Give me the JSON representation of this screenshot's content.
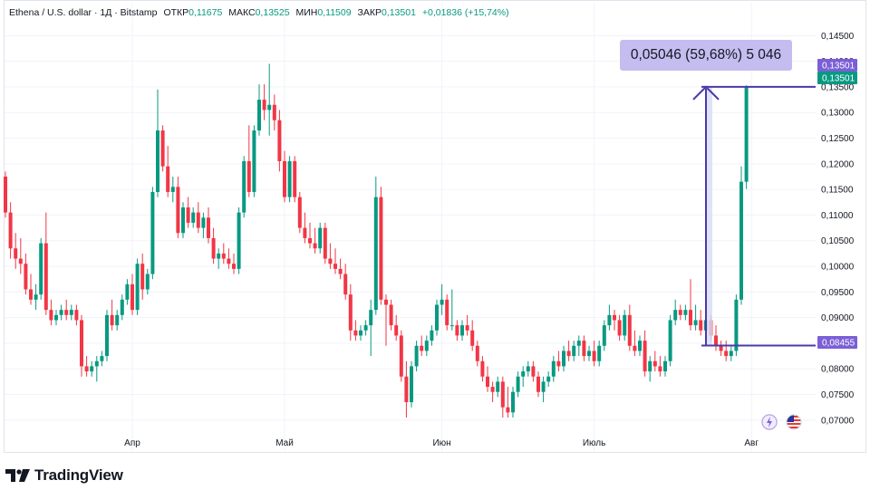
{
  "header": {
    "symbol": "Ethena / U.S. dollar · 1Д · Bitstamp",
    "open_label": "ОТКР",
    "open_value": "0,11675",
    "high_label": "МАКС",
    "high_value": "0,13525",
    "low_label": "МИН",
    "low_value": "0,11509",
    "close_label": "ЗАКР",
    "close_value": "0,13501",
    "change": "+0,01836 (+15,74%)"
  },
  "measure": {
    "label": "0,05046 (59,68%) 5 046",
    "from": 0.08455,
    "to": 0.13501
  },
  "price_tags": [
    {
      "text": "0,13501",
      "value": 0.13501,
      "color": "#7b5fd6"
    },
    {
      "text": "0,13501",
      "value": 0.13501,
      "color": "#089981"
    },
    {
      "text": "0,08455",
      "value": 0.08455,
      "color": "#7b5fd6"
    }
  ],
  "brand": {
    "name": "TradingView"
  },
  "icons": {
    "lightning": "lightning-icon",
    "flag": "us-flag-icon",
    "logo": "tradingview-logo-icon"
  },
  "colors": {
    "up": "#089981",
    "down": "#f23645",
    "measure": "#4a3aa8",
    "tag": "#7b5fd6"
  },
  "chart_data": {
    "type": "candlestick",
    "title": "Ethena / U.S. dollar · 1Д · Bitstamp",
    "xlabel": "",
    "ylabel": "",
    "ylim": [
      0.0675,
      0.147
    ],
    "y_ticks": [
      {
        "value": 0.07,
        "label": "0,07000"
      },
      {
        "value": 0.075,
        "label": "0,07500"
      },
      {
        "value": 0.08,
        "label": "0,08000"
      },
      {
        "value": 0.085,
        "label": "0,08500"
      },
      {
        "value": 0.09,
        "label": "0,09000"
      },
      {
        "value": 0.095,
        "label": "0,09500"
      },
      {
        "value": 0.1,
        "label": "0,10000"
      },
      {
        "value": 0.105,
        "label": "0,10500"
      },
      {
        "value": 0.11,
        "label": "0,11000"
      },
      {
        "value": 0.115,
        "label": "0,11500"
      },
      {
        "value": 0.12,
        "label": "0,12000"
      },
      {
        "value": 0.125,
        "label": "0,12500"
      },
      {
        "value": 0.13,
        "label": "0,13000"
      },
      {
        "value": 0.135,
        "label": "0,13500"
      },
      {
        "value": 0.14,
        "label": "0,14000"
      },
      {
        "value": 0.145,
        "label": "0,14500"
      }
    ],
    "x_ticks": [
      {
        "index": 25,
        "label": "Апр"
      },
      {
        "index": 55,
        "label": "Май"
      },
      {
        "index": 86,
        "label": "Июн"
      },
      {
        "index": 116,
        "label": "Июль"
      },
      {
        "index": 147,
        "label": "Авг"
      }
    ],
    "grid": true,
    "legend": "none",
    "candles": [
      {
        "o": 0.1175,
        "h": 0.1185,
        "l": 0.1095,
        "c": 0.1105
      },
      {
        "o": 0.1105,
        "h": 0.1125,
        "l": 0.1015,
        "c": 0.1035
      },
      {
        "o": 0.1035,
        "h": 0.1065,
        "l": 0.0995,
        "c": 0.1015
      },
      {
        "o": 0.1015,
        "h": 0.1055,
        "l": 0.0985,
        "c": 0.1005
      },
      {
        "o": 0.1005,
        "h": 0.1025,
        "l": 0.0945,
        "c": 0.0955
      },
      {
        "o": 0.0955,
        "h": 0.0985,
        "l": 0.0925,
        "c": 0.0935
      },
      {
        "o": 0.0935,
        "h": 0.0965,
        "l": 0.0915,
        "c": 0.0945
      },
      {
        "o": 0.0945,
        "h": 0.1055,
        "l": 0.0935,
        "c": 0.1045
      },
      {
        "o": 0.1045,
        "h": 0.1105,
        "l": 0.0905,
        "c": 0.0915
      },
      {
        "o": 0.0915,
        "h": 0.0935,
        "l": 0.0885,
        "c": 0.0895
      },
      {
        "o": 0.0895,
        "h": 0.0915,
        "l": 0.0885,
        "c": 0.0905
      },
      {
        "o": 0.0905,
        "h": 0.0925,
        "l": 0.0895,
        "c": 0.0915
      },
      {
        "o": 0.0915,
        "h": 0.0935,
        "l": 0.0895,
        "c": 0.0905
      },
      {
        "o": 0.0905,
        "h": 0.0925,
        "l": 0.0895,
        "c": 0.0915
      },
      {
        "o": 0.0915,
        "h": 0.0925,
        "l": 0.0885,
        "c": 0.0895
      },
      {
        "o": 0.0895,
        "h": 0.0905,
        "l": 0.0785,
        "c": 0.0805
      },
      {
        "o": 0.0805,
        "h": 0.0825,
        "l": 0.0785,
        "c": 0.0795
      },
      {
        "o": 0.0795,
        "h": 0.0815,
        "l": 0.0785,
        "c": 0.0805
      },
      {
        "o": 0.0805,
        "h": 0.0825,
        "l": 0.0775,
        "c": 0.0815
      },
      {
        "o": 0.0815,
        "h": 0.0835,
        "l": 0.0805,
        "c": 0.0825
      },
      {
        "o": 0.0825,
        "h": 0.0915,
        "l": 0.0815,
        "c": 0.0905
      },
      {
        "o": 0.0905,
        "h": 0.0935,
        "l": 0.0875,
        "c": 0.0885
      },
      {
        "o": 0.0885,
        "h": 0.0915,
        "l": 0.0875,
        "c": 0.0905
      },
      {
        "o": 0.0905,
        "h": 0.0945,
        "l": 0.0895,
        "c": 0.0935
      },
      {
        "o": 0.0935,
        "h": 0.0975,
        "l": 0.0925,
        "c": 0.0965
      },
      {
        "o": 0.0965,
        "h": 0.0985,
        "l": 0.0905,
        "c": 0.0915
      },
      {
        "o": 0.0915,
        "h": 0.1015,
        "l": 0.0905,
        "c": 0.1005
      },
      {
        "o": 0.1005,
        "h": 0.1025,
        "l": 0.0935,
        "c": 0.0955
      },
      {
        "o": 0.0955,
        "h": 0.0995,
        "l": 0.0945,
        "c": 0.0985
      },
      {
        "o": 0.0985,
        "h": 0.1155,
        "l": 0.0975,
        "c": 0.1145
      },
      {
        "o": 0.1145,
        "h": 0.1345,
        "l": 0.1135,
        "c": 0.1265
      },
      {
        "o": 0.1265,
        "h": 0.1275,
        "l": 0.1185,
        "c": 0.1195
      },
      {
        "o": 0.1195,
        "h": 0.1235,
        "l": 0.1135,
        "c": 0.1145
      },
      {
        "o": 0.1145,
        "h": 0.1175,
        "l": 0.1125,
        "c": 0.1155
      },
      {
        "o": 0.1155,
        "h": 0.1175,
        "l": 0.1055,
        "c": 0.1065
      },
      {
        "o": 0.1065,
        "h": 0.1125,
        "l": 0.1055,
        "c": 0.1115
      },
      {
        "o": 0.1115,
        "h": 0.1135,
        "l": 0.1075,
        "c": 0.1085
      },
      {
        "o": 0.1085,
        "h": 0.1115,
        "l": 0.1075,
        "c": 0.1105
      },
      {
        "o": 0.1105,
        "h": 0.1125,
        "l": 0.1065,
        "c": 0.1075
      },
      {
        "o": 0.1075,
        "h": 0.1105,
        "l": 0.1055,
        "c": 0.1095
      },
      {
        "o": 0.1095,
        "h": 0.1115,
        "l": 0.1045,
        "c": 0.1055
      },
      {
        "o": 0.1055,
        "h": 0.1075,
        "l": 0.1005,
        "c": 0.1015
      },
      {
        "o": 0.1015,
        "h": 0.1035,
        "l": 0.0995,
        "c": 0.1025
      },
      {
        "o": 0.1025,
        "h": 0.1045,
        "l": 0.1005,
        "c": 0.1015
      },
      {
        "o": 0.1015,
        "h": 0.1035,
        "l": 0.0995,
        "c": 0.1005
      },
      {
        "o": 0.1005,
        "h": 0.1025,
        "l": 0.0985,
        "c": 0.0995
      },
      {
        "o": 0.0995,
        "h": 0.1115,
        "l": 0.0985,
        "c": 0.1105
      },
      {
        "o": 0.1105,
        "h": 0.1215,
        "l": 0.1095,
        "c": 0.1205
      },
      {
        "o": 0.1205,
        "h": 0.1275,
        "l": 0.1135,
        "c": 0.1145
      },
      {
        "o": 0.1145,
        "h": 0.1275,
        "l": 0.1135,
        "c": 0.1265
      },
      {
        "o": 0.1265,
        "h": 0.1355,
        "l": 0.1255,
        "c": 0.1325
      },
      {
        "o": 0.1325,
        "h": 0.1355,
        "l": 0.1285,
        "c": 0.1305
      },
      {
        "o": 0.1305,
        "h": 0.1395,
        "l": 0.1255,
        "c": 0.1315
      },
      {
        "o": 0.1315,
        "h": 0.1335,
        "l": 0.1265,
        "c": 0.1285
      },
      {
        "o": 0.1285,
        "h": 0.1305,
        "l": 0.1185,
        "c": 0.1205
      },
      {
        "o": 0.1205,
        "h": 0.1225,
        "l": 0.1125,
        "c": 0.1135
      },
      {
        "o": 0.1135,
        "h": 0.1215,
        "l": 0.1125,
        "c": 0.1205
      },
      {
        "o": 0.1205,
        "h": 0.1215,
        "l": 0.1125,
        "c": 0.1135
      },
      {
        "o": 0.1135,
        "h": 0.1145,
        "l": 0.1065,
        "c": 0.1075
      },
      {
        "o": 0.1075,
        "h": 0.1105,
        "l": 0.1045,
        "c": 0.1055
      },
      {
        "o": 0.1055,
        "h": 0.1085,
        "l": 0.1035,
        "c": 0.1045
      },
      {
        "o": 0.1045,
        "h": 0.1075,
        "l": 0.1025,
        "c": 0.1035
      },
      {
        "o": 0.1035,
        "h": 0.1085,
        "l": 0.1025,
        "c": 0.1075
      },
      {
        "o": 0.1075,
        "h": 0.1085,
        "l": 0.1005,
        "c": 0.1015
      },
      {
        "o": 0.1015,
        "h": 0.1045,
        "l": 0.0995,
        "c": 0.1005
      },
      {
        "o": 0.1005,
        "h": 0.1035,
        "l": 0.0985,
        "c": 0.0995
      },
      {
        "o": 0.0995,
        "h": 0.1015,
        "l": 0.0975,
        "c": 0.0985
      },
      {
        "o": 0.0985,
        "h": 0.1005,
        "l": 0.0935,
        "c": 0.0945
      },
      {
        "o": 0.0945,
        "h": 0.0965,
        "l": 0.0855,
        "c": 0.0875
      },
      {
        "o": 0.0875,
        "h": 0.0895,
        "l": 0.0855,
        "c": 0.0865
      },
      {
        "o": 0.0865,
        "h": 0.0885,
        "l": 0.0855,
        "c": 0.0875
      },
      {
        "o": 0.0875,
        "h": 0.0895,
        "l": 0.0865,
        "c": 0.0885
      },
      {
        "o": 0.0885,
        "h": 0.0935,
        "l": 0.0825,
        "c": 0.0915
      },
      {
        "o": 0.0915,
        "h": 0.1175,
        "l": 0.0905,
        "c": 0.1135
      },
      {
        "o": 0.1135,
        "h": 0.1155,
        "l": 0.0925,
        "c": 0.0935
      },
      {
        "o": 0.0935,
        "h": 0.0945,
        "l": 0.0845,
        "c": 0.0925
      },
      {
        "o": 0.0925,
        "h": 0.0935,
        "l": 0.0875,
        "c": 0.0885
      },
      {
        "o": 0.0885,
        "h": 0.0905,
        "l": 0.0855,
        "c": 0.0865
      },
      {
        "o": 0.0865,
        "h": 0.0875,
        "l": 0.0775,
        "c": 0.0785
      },
      {
        "o": 0.0785,
        "h": 0.0815,
        "l": 0.0705,
        "c": 0.0735
      },
      {
        "o": 0.0735,
        "h": 0.0815,
        "l": 0.0725,
        "c": 0.0805
      },
      {
        "o": 0.0805,
        "h": 0.0855,
        "l": 0.0795,
        "c": 0.0845
      },
      {
        "o": 0.0845,
        "h": 0.0865,
        "l": 0.0825,
        "c": 0.0835
      },
      {
        "o": 0.0835,
        "h": 0.0865,
        "l": 0.0825,
        "c": 0.0855
      },
      {
        "o": 0.0855,
        "h": 0.0885,
        "l": 0.0845,
        "c": 0.0875
      },
      {
        "o": 0.0875,
        "h": 0.0935,
        "l": 0.0865,
        "c": 0.0925
      },
      {
        "o": 0.0925,
        "h": 0.0965,
        "l": 0.0905,
        "c": 0.0935
      },
      {
        "o": 0.0935,
        "h": 0.0945,
        "l": 0.0875,
        "c": 0.0885
      },
      {
        "o": 0.0885,
        "h": 0.0955,
        "l": 0.0875,
        "c": 0.0885
      },
      {
        "o": 0.0885,
        "h": 0.0895,
        "l": 0.0855,
        "c": 0.0865
      },
      {
        "o": 0.0865,
        "h": 0.0895,
        "l": 0.0855,
        "c": 0.0885
      },
      {
        "o": 0.0885,
        "h": 0.0905,
        "l": 0.0865,
        "c": 0.0875
      },
      {
        "o": 0.0875,
        "h": 0.0895,
        "l": 0.0835,
        "c": 0.0845
      },
      {
        "o": 0.0845,
        "h": 0.0855,
        "l": 0.0805,
        "c": 0.0815
      },
      {
        "o": 0.0815,
        "h": 0.0825,
        "l": 0.0775,
        "c": 0.0785
      },
      {
        "o": 0.0785,
        "h": 0.0805,
        "l": 0.0755,
        "c": 0.0765
      },
      {
        "o": 0.0765,
        "h": 0.0775,
        "l": 0.0735,
        "c": 0.0755
      },
      {
        "o": 0.0755,
        "h": 0.0785,
        "l": 0.0745,
        "c": 0.0775
      },
      {
        "o": 0.0775,
        "h": 0.0785,
        "l": 0.0705,
        "c": 0.0725
      },
      {
        "o": 0.0725,
        "h": 0.0765,
        "l": 0.0705,
        "c": 0.0715
      },
      {
        "o": 0.0715,
        "h": 0.0765,
        "l": 0.0705,
        "c": 0.0755
      },
      {
        "o": 0.0755,
        "h": 0.0795,
        "l": 0.0745,
        "c": 0.0785
      },
      {
        "o": 0.0785,
        "h": 0.0805,
        "l": 0.0765,
        "c": 0.0795
      },
      {
        "o": 0.0795,
        "h": 0.0815,
        "l": 0.0785,
        "c": 0.0805
      },
      {
        "o": 0.0805,
        "h": 0.0815,
        "l": 0.0775,
        "c": 0.0785
      },
      {
        "o": 0.0785,
        "h": 0.0795,
        "l": 0.0745,
        "c": 0.0755
      },
      {
        "o": 0.0755,
        "h": 0.0785,
        "l": 0.0735,
        "c": 0.0775
      },
      {
        "o": 0.0775,
        "h": 0.0795,
        "l": 0.0765,
        "c": 0.0785
      },
      {
        "o": 0.0785,
        "h": 0.0825,
        "l": 0.0775,
        "c": 0.0815
      },
      {
        "o": 0.0815,
        "h": 0.0835,
        "l": 0.0795,
        "c": 0.0805
      },
      {
        "o": 0.0805,
        "h": 0.0845,
        "l": 0.0795,
        "c": 0.0835
      },
      {
        "o": 0.0835,
        "h": 0.0855,
        "l": 0.0815,
        "c": 0.0825
      },
      {
        "o": 0.0825,
        "h": 0.0855,
        "l": 0.0815,
        "c": 0.0845
      },
      {
        "o": 0.0845,
        "h": 0.0865,
        "l": 0.0825,
        "c": 0.0855
      },
      {
        "o": 0.0855,
        "h": 0.0865,
        "l": 0.0815,
        "c": 0.0825
      },
      {
        "o": 0.0825,
        "h": 0.0845,
        "l": 0.0815,
        "c": 0.0835
      },
      {
        "o": 0.0835,
        "h": 0.0855,
        "l": 0.0805,
        "c": 0.0815
      },
      {
        "o": 0.0815,
        "h": 0.0855,
        "l": 0.0805,
        "c": 0.0845
      },
      {
        "o": 0.0845,
        "h": 0.0895,
        "l": 0.0835,
        "c": 0.0885
      },
      {
        "o": 0.0885,
        "h": 0.0925,
        "l": 0.0875,
        "c": 0.0905
      },
      {
        "o": 0.0905,
        "h": 0.0915,
        "l": 0.0875,
        "c": 0.0895
      },
      {
        "o": 0.0895,
        "h": 0.0905,
        "l": 0.0855,
        "c": 0.0865
      },
      {
        "o": 0.0865,
        "h": 0.0915,
        "l": 0.0855,
        "c": 0.0905
      },
      {
        "o": 0.0905,
        "h": 0.0925,
        "l": 0.0835,
        "c": 0.0845
      },
      {
        "o": 0.0845,
        "h": 0.0875,
        "l": 0.0825,
        "c": 0.0835
      },
      {
        "o": 0.0835,
        "h": 0.0865,
        "l": 0.0825,
        "c": 0.0855
      },
      {
        "o": 0.0855,
        "h": 0.0875,
        "l": 0.0785,
        "c": 0.0795
      },
      {
        "o": 0.0795,
        "h": 0.0825,
        "l": 0.0775,
        "c": 0.0815
      },
      {
        "o": 0.0815,
        "h": 0.0835,
        "l": 0.0795,
        "c": 0.0805
      },
      {
        "o": 0.0805,
        "h": 0.0825,
        "l": 0.0785,
        "c": 0.0795
      },
      {
        "o": 0.0795,
        "h": 0.0825,
        "l": 0.0785,
        "c": 0.0815
      },
      {
        "o": 0.0815,
        "h": 0.0905,
        "l": 0.0805,
        "c": 0.0895
      },
      {
        "o": 0.0895,
        "h": 0.0935,
        "l": 0.0885,
        "c": 0.0915
      },
      {
        "o": 0.0915,
        "h": 0.0925,
        "l": 0.0895,
        "c": 0.0905
      },
      {
        "o": 0.0905,
        "h": 0.0925,
        "l": 0.0895,
        "c": 0.0915
      },
      {
        "o": 0.0915,
        "h": 0.0975,
        "l": 0.0875,
        "c": 0.0885
      },
      {
        "o": 0.0885,
        "h": 0.0925,
        "l": 0.0875,
        "c": 0.0895
      },
      {
        "o": 0.0895,
        "h": 0.0915,
        "l": 0.0865,
        "c": 0.0875
      },
      {
        "o": 0.0875,
        "h": 0.0905,
        "l": 0.0865,
        "c": 0.0895
      },
      {
        "o": 0.0895,
        "h": 0.0905,
        "l": 0.0855,
        "c": 0.0865
      },
      {
        "o": 0.0865,
        "h": 0.0885,
        "l": 0.0835,
        "c": 0.0845
      },
      {
        "o": 0.0845,
        "h": 0.0855,
        "l": 0.0825,
        "c": 0.0835
      },
      {
        "o": 0.0835,
        "h": 0.0855,
        "l": 0.0815,
        "c": 0.0825
      },
      {
        "o": 0.0825,
        "h": 0.0845,
        "l": 0.0815,
        "c": 0.0835
      },
      {
        "o": 0.0835,
        "h": 0.0945,
        "l": 0.0825,
        "c": 0.0935
      },
      {
        "o": 0.0935,
        "h": 0.1195,
        "l": 0.0925,
        "c": 0.1165
      },
      {
        "o": 0.1165,
        "h": 0.1353,
        "l": 0.1151,
        "c": 0.135
      }
    ]
  }
}
